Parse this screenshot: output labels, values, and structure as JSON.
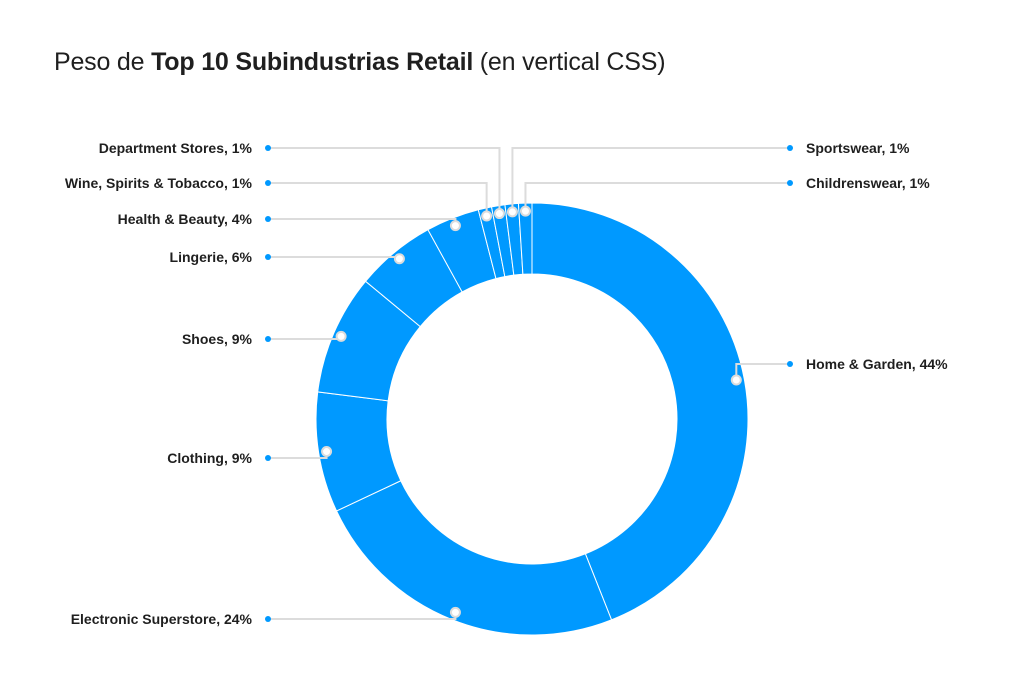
{
  "title": {
    "prefix": "Peso de ",
    "bold": "Top 10 Subindustrias Retail",
    "suffix": " (en vertical CSS)"
  },
  "colors": {
    "slice": "#0099ff",
    "slice_border": "#ffffff",
    "leader": "#dcdcdc",
    "dot": "#0099ff",
    "label_text": "#1f1f1f"
  },
  "chart_data": {
    "type": "pie",
    "title": "Peso de Top 10 Subindustrias Retail (en vertical CSS)",
    "donut": true,
    "unit": "%",
    "slices": [
      {
        "label": "Home & Garden, 44%",
        "name": "Home & Garden",
        "value": 44
      },
      {
        "label": "Electronic Superstore, 24%",
        "name": "Electronic Superstore",
        "value": 24
      },
      {
        "label": "Clothing, 9%",
        "name": "Clothing",
        "value": 9
      },
      {
        "label": "Shoes, 9%",
        "name": "Shoes",
        "value": 9
      },
      {
        "label": "Lingerie, 6%",
        "name": "Lingerie",
        "value": 6
      },
      {
        "label": "Health & Beauty, 4%",
        "name": "Health & Beauty",
        "value": 4
      },
      {
        "label": "Wine, Spirits & Tobacco, 1%",
        "name": "Wine, Spirits & Tobacco",
        "value": 1
      },
      {
        "label": "Department Stores, 1%",
        "name": "Department Stores",
        "value": 1
      },
      {
        "label": "Sportswear, 1%",
        "name": "Sportswear",
        "value": 1
      },
      {
        "label": "Childrenswear, 1%",
        "name": "Childrenswear",
        "value": 1
      }
    ]
  }
}
